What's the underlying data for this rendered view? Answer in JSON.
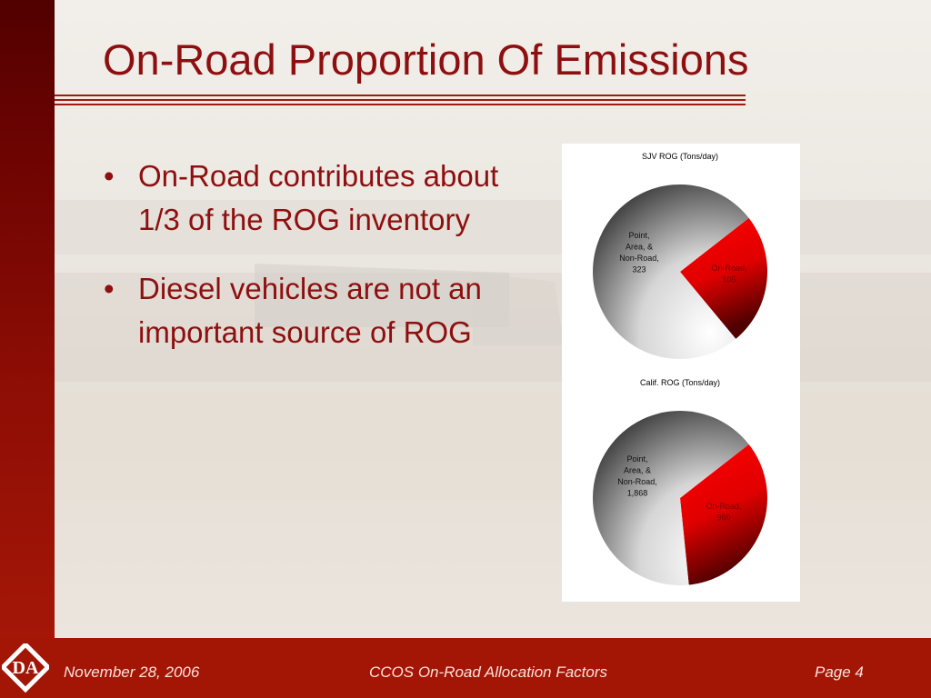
{
  "slide": {
    "title": "On-Road Proportion Of Emissions",
    "bullets": [
      "On-Road contributes about 1/3 of the ROG inventory",
      "Diesel vehicles are not an important source of ROG"
    ],
    "bullet_symbol": "•"
  },
  "footer": {
    "date": "November 28, 2006",
    "center": "CCOS On-Road Allocation Factors",
    "page": "Page 4",
    "logo_text": "DA"
  },
  "colors": {
    "accent": "#8e0f0f",
    "bar": "#a31505",
    "onroad_red": "#ff0000",
    "other_gray": "#3a3a3a"
  },
  "chart_data": [
    {
      "type": "pie",
      "title": "SJV ROG (Tons/day)",
      "slices": [
        {
          "label_lines": [
            "On-Road,",
            "105"
          ],
          "value": 105
        },
        {
          "label_lines": [
            "Point,",
            "Area, &",
            "Non-Road,",
            "323"
          ],
          "value": 323
        }
      ]
    },
    {
      "type": "pie",
      "title": "Calif. ROG (Tons/day)",
      "slices": [
        {
          "label_lines": [
            "On-Road,",
            "960"
          ],
          "value": 960
        },
        {
          "label_lines": [
            "Point,",
            "Area, &",
            "Non-Road,",
            "1,868"
          ],
          "value": 1868
        }
      ]
    }
  ]
}
